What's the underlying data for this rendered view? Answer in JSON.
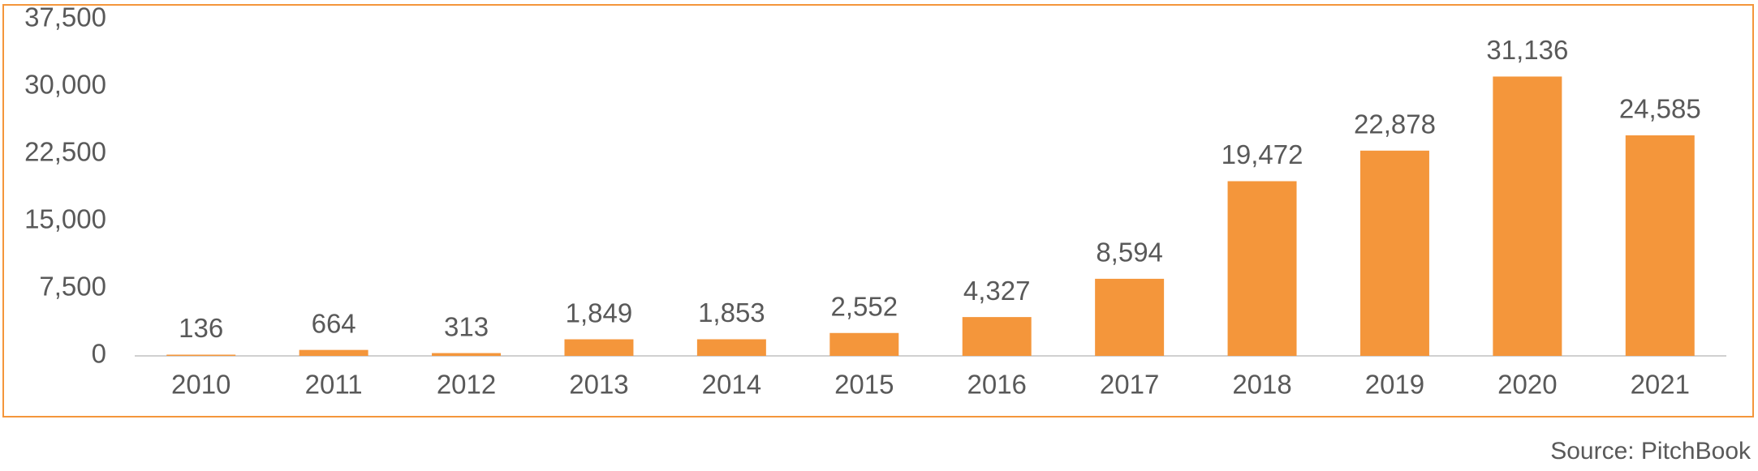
{
  "chart_data": {
    "type": "bar",
    "categories": [
      "2010",
      "2011",
      "2012",
      "2013",
      "2014",
      "2015",
      "2016",
      "2017",
      "2018",
      "2019",
      "2020",
      "2021"
    ],
    "values": [
      136,
      664,
      313,
      1849,
      1853,
      2552,
      4327,
      8594,
      19472,
      22878,
      31136,
      24585
    ],
    "value_labels": [
      "136",
      "664",
      "313",
      "1,849",
      "1,853",
      "2,552",
      "4,327",
      "8,594",
      "19,472",
      "22,878",
      "31,136",
      "24,585"
    ],
    "color": "#f4963b",
    "ylim": [
      0,
      37500
    ],
    "yticks": [
      0,
      {
        "value": 7500,
        "label": "7,500"
      },
      {
        "value": 15000,
        "label": "15,000"
      },
      {
        "value": 22500,
        "label": "22,500"
      },
      {
        "value": 30000,
        "label": "30,000"
      },
      {
        "value": 37500,
        "label": "37,500"
      }
    ],
    "grid": false,
    "source": "Source: PitchBook"
  }
}
